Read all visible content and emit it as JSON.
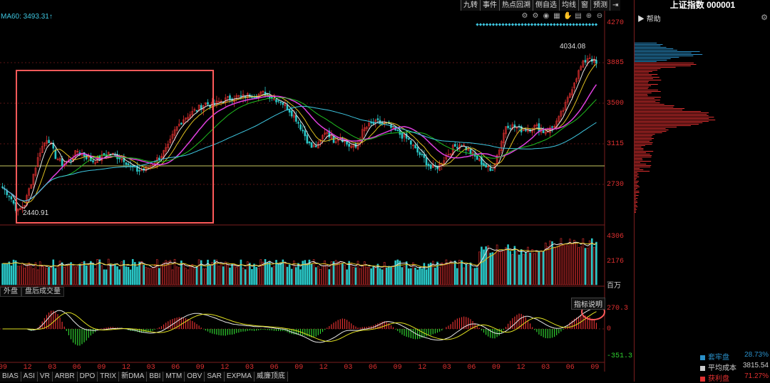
{
  "toolbar": {
    "buttons": [
      "九转",
      "事件",
      "热点回溯",
      "侧自选",
      "均线",
      "窗",
      "预测",
      "⇥"
    ]
  },
  "chart_icons": [
    "settings-icon",
    "settings-icon",
    "eye-icon",
    "calendar-icon",
    "hand-icon",
    "trash-icon",
    "zoom-in-icon",
    "zoom-out-icon"
  ],
  "ma_label": "MA60: 3493.31↑",
  "price_axis": [
    "4270",
    "3885",
    "3500",
    "3115",
    "2730"
  ],
  "high_label": "4034.08",
  "low_label": "2440.91",
  "volume_axis": [
    "4306",
    "2176",
    "百万"
  ],
  "indicator_axis": [
    "270.3",
    "0",
    "-351.3"
  ],
  "middle_tabs": [
    "外盘",
    "盘后成交量"
  ],
  "indicator_title": "指标说明",
  "time_axis": [
    "09",
    "12",
    "03",
    "06",
    "09",
    "12",
    "03",
    "06",
    "09",
    "12",
    "03",
    "06",
    "09",
    "12",
    "03",
    "06",
    "09",
    "12",
    "03",
    "06",
    "09",
    "12",
    "03",
    "06",
    "09"
  ],
  "bottom_tabs": [
    "BIAS",
    "ASI",
    "VR",
    "ARBR",
    "DPO",
    "TRIX",
    "新DMA",
    "BBI",
    "MTM",
    "OBV",
    "SAR",
    "EXPMA",
    "威廉顶底"
  ],
  "side": {
    "title": "上证指数 000001",
    "help": "帮助",
    "legend": [
      {
        "label": "套牢盘",
        "value": "28.73%",
        "color": "#2a8fc8"
      },
      {
        "label": "平均成本",
        "value": "3815.54",
        "color": "#cccccc"
      },
      {
        "label": "获利盘",
        "value": "71.27%",
        "color": "#e03030"
      }
    ]
  },
  "chart_data": {
    "type": "candlestick",
    "price_range": [
      2440,
      4270
    ],
    "close_path": [
      2700,
      2620,
      2470,
      2550,
      2800,
      3050,
      3180,
      3000,
      2920,
      2960,
      3050,
      3000,
      2950,
      2980,
      3030,
      3000,
      2980,
      2900,
      2860,
      2870,
      2930,
      3000,
      3080,
      3250,
      3350,
      3400,
      3450,
      3500,
      3480,
      3520,
      3540,
      3560,
      3560,
      3580,
      3580,
      3600,
      3550,
      3520,
      3450,
      3360,
      3230,
      3080,
      3100,
      3250,
      3150,
      3180,
      3100,
      3080,
      3250,
      3300,
      3320,
      3300,
      3250,
      3200,
      3150,
      3050,
      2980,
      2880,
      2900,
      3000,
      3080,
      3120,
      3050,
      2980,
      2920,
      2850,
      3050,
      3300,
      3280,
      3250,
      3260,
      3280,
      3230,
      3260,
      3350,
      3500,
      3700,
      3850,
      3950,
      3870
    ]
  }
}
